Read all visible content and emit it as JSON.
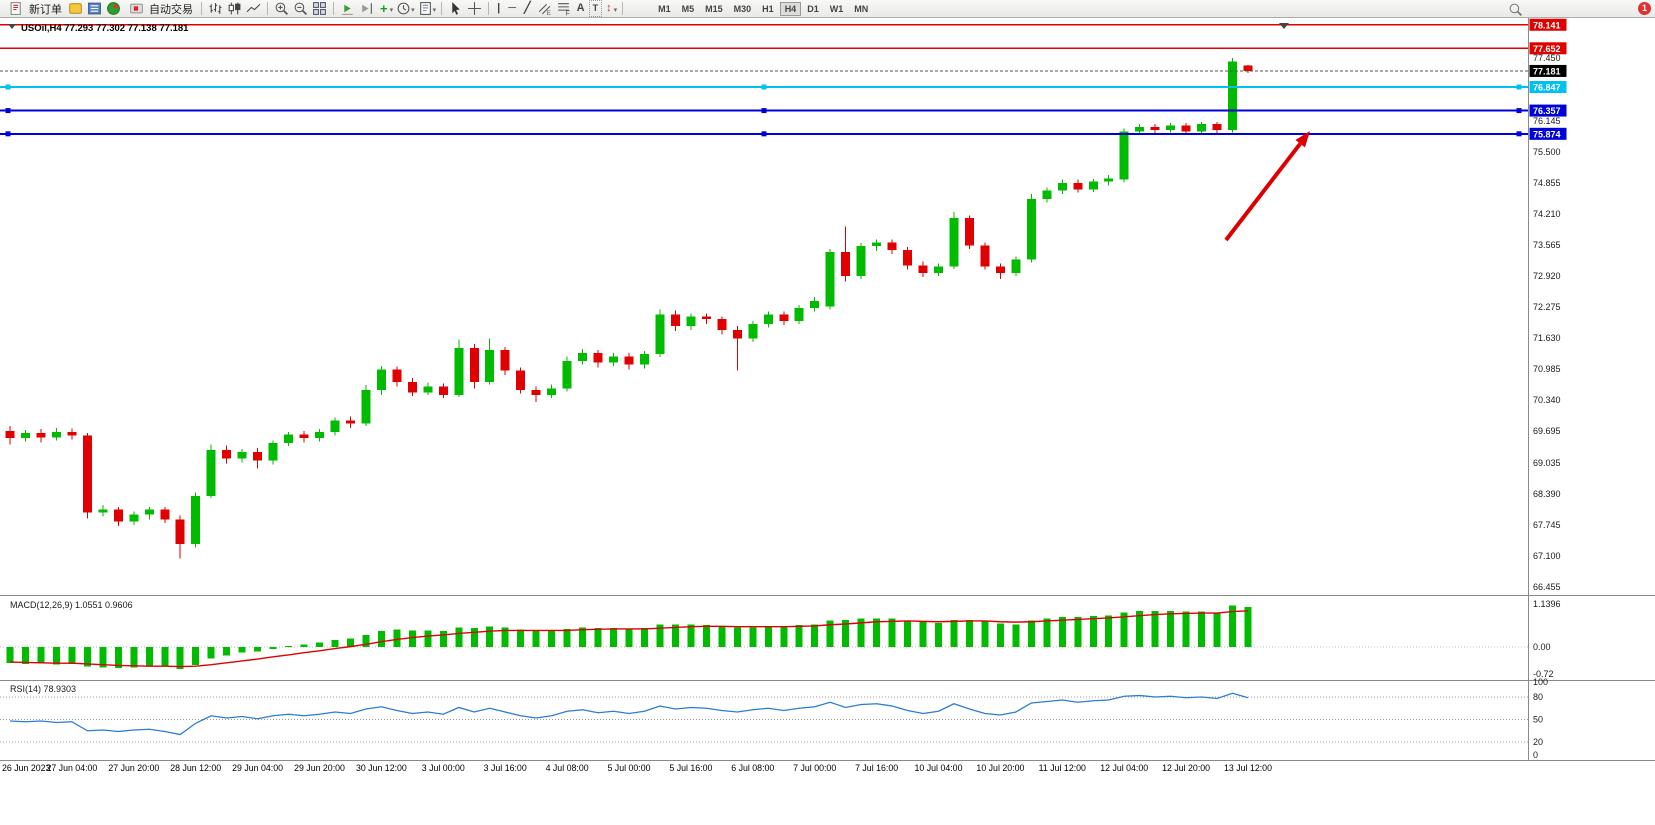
{
  "toolbar": {
    "new_order_label": "新订单",
    "auto_trading_label": "自动交易",
    "timeframes": [
      "M1",
      "M5",
      "M15",
      "M30",
      "H1",
      "H4",
      "D1",
      "W1",
      "MN"
    ],
    "active_timeframe": "H4",
    "notification_count": "1"
  },
  "icons": {
    "caret": "▾",
    "vline_tool": "|",
    "hline_tool": "─",
    "trendline_tool": "╱",
    "text_tool": "A",
    "label_tool": "T",
    "arrows_tool": "↕",
    "add_indicator": "+"
  },
  "chart": {
    "title": {
      "symbol": "USOil,H4",
      "open": "77.293",
      "high": "77.302",
      "low": "77.138",
      "close": "77.181"
    }
  },
  "macd": {
    "name": "MACD(12,26,9)",
    "main_value": "1.0551",
    "signal_value": "0.9606"
  },
  "rsi": {
    "name": "RSI(14)",
    "value": "78.9303"
  },
  "chart_data": {
    "type": "candlestick",
    "symbol": "USOil",
    "period": "H4",
    "colors": {
      "up": "#00bb00",
      "down": "#e00000",
      "macd_hist": "#00bb00",
      "macd_signal": "#e00000",
      "rsi_line": "#2b7cd3"
    },
    "price_axis_labels": [
      "77.450",
      "76.145",
      "75.500",
      "74.855",
      "74.210",
      "73.565",
      "72.920",
      "72.275",
      "71.630",
      "70.985",
      "70.340",
      "69.695",
      "69.035",
      "68.390",
      "67.745",
      "67.100",
      "66.455"
    ],
    "time_labels": [
      "26 Jun 2023",
      "27 Jun 04:00",
      "27 Jun 20:00",
      "28 Jun 12:00",
      "29 Jun 04:00",
      "29 Jun 20:00",
      "30 Jun 12:00",
      "3 Jul 00:00",
      "3 Jul 16:00",
      "4 Jul 08:00",
      "5 Jul 00:00",
      "5 Jul 16:00",
      "6 Jul 08:00",
      "7 Jul 00:00",
      "7 Jul 16:00",
      "10 Jul 04:00",
      "10 Jul 20:00",
      "11 Jul 12:00",
      "12 Jul 04:00",
      "12 Jul 20:00",
      "13 Jul 12:00"
    ],
    "label_every_n_candles": 4,
    "candles": [
      [
        69.7,
        69.8,
        69.42,
        69.55
      ],
      [
        69.55,
        69.72,
        69.48,
        69.65
      ],
      [
        69.65,
        69.74,
        69.46,
        69.56
      ],
      [
        69.56,
        69.76,
        69.5,
        69.68
      ],
      [
        69.68,
        69.75,
        69.52,
        69.6
      ],
      [
        69.6,
        69.66,
        67.88,
        68.0
      ],
      [
        68.0,
        68.16,
        67.92,
        68.06
      ],
      [
        68.06,
        68.12,
        67.72,
        67.82
      ],
      [
        67.82,
        68.02,
        67.74,
        67.96
      ],
      [
        67.96,
        68.12,
        67.86,
        68.06
      ],
      [
        68.06,
        68.12,
        67.78,
        67.86
      ],
      [
        67.86,
        67.94,
        67.05,
        67.35
      ],
      [
        67.35,
        68.42,
        67.28,
        68.35
      ],
      [
        68.35,
        69.42,
        68.3,
        69.3
      ],
      [
        69.3,
        69.4,
        69.02,
        69.12
      ],
      [
        69.12,
        69.32,
        69.04,
        69.26
      ],
      [
        69.26,
        69.34,
        68.92,
        69.08
      ],
      [
        69.08,
        69.5,
        69.0,
        69.45
      ],
      [
        69.45,
        69.68,
        69.38,
        69.62
      ],
      [
        69.62,
        69.7,
        69.46,
        69.55
      ],
      [
        69.55,
        69.74,
        69.48,
        69.68
      ],
      [
        69.68,
        69.98,
        69.6,
        69.92
      ],
      [
        69.92,
        70.0,
        69.76,
        69.85
      ],
      [
        69.85,
        70.65,
        69.8,
        70.55
      ],
      [
        70.55,
        71.05,
        70.45,
        70.98
      ],
      [
        70.98,
        71.04,
        70.62,
        70.72
      ],
      [
        70.72,
        70.8,
        70.42,
        70.5
      ],
      [
        70.5,
        70.7,
        70.44,
        70.62
      ],
      [
        70.62,
        70.68,
        70.38,
        70.45
      ],
      [
        70.45,
        71.6,
        70.4,
        71.42
      ],
      [
        71.42,
        71.5,
        70.58,
        70.72
      ],
      [
        70.72,
        71.62,
        70.66,
        71.38
      ],
      [
        71.38,
        71.44,
        70.86,
        70.95
      ],
      [
        70.95,
        71.02,
        70.48,
        70.55
      ],
      [
        70.55,
        70.62,
        70.3,
        70.45
      ],
      [
        70.45,
        70.66,
        70.38,
        70.58
      ],
      [
        70.58,
        71.25,
        70.52,
        71.15
      ],
      [
        71.15,
        71.4,
        71.08,
        71.32
      ],
      [
        71.32,
        71.38,
        71.02,
        71.12
      ],
      [
        71.12,
        71.32,
        71.05,
        71.25
      ],
      [
        71.25,
        71.32,
        70.98,
        71.08
      ],
      [
        71.08,
        71.36,
        71.0,
        71.3
      ],
      [
        71.3,
        72.22,
        71.24,
        72.12
      ],
      [
        72.12,
        72.2,
        71.78,
        71.88
      ],
      [
        71.88,
        72.14,
        71.8,
        72.08
      ],
      [
        72.08,
        72.14,
        71.92,
        72.02
      ],
      [
        72.02,
        72.08,
        71.7,
        71.8
      ],
      [
        71.8,
        71.88,
        70.95,
        71.62
      ],
      [
        71.62,
        71.98,
        71.55,
        71.92
      ],
      [
        71.92,
        72.18,
        71.85,
        72.12
      ],
      [
        72.12,
        72.18,
        71.9,
        71.98
      ],
      [
        71.98,
        72.32,
        71.92,
        72.25
      ],
      [
        72.25,
        72.48,
        72.18,
        72.4
      ],
      [
        72.28,
        73.48,
        72.22,
        73.42
      ],
      [
        73.42,
        73.95,
        72.8,
        72.92
      ],
      [
        72.92,
        73.6,
        72.86,
        73.54
      ],
      [
        73.54,
        73.68,
        73.44,
        73.62
      ],
      [
        73.62,
        73.68,
        73.38,
        73.46
      ],
      [
        73.46,
        73.52,
        73.05,
        73.14
      ],
      [
        73.14,
        73.22,
        72.9,
        72.98
      ],
      [
        72.98,
        73.18,
        72.92,
        73.12
      ],
      [
        73.12,
        74.25,
        73.06,
        74.12
      ],
      [
        74.12,
        74.18,
        73.48,
        73.55
      ],
      [
        73.55,
        73.62,
        73.05,
        73.12
      ],
      [
        73.12,
        73.18,
        72.86,
        72.98
      ],
      [
        72.98,
        73.32,
        72.92,
        73.26
      ],
      [
        73.26,
        74.62,
        73.2,
        74.52
      ],
      [
        74.52,
        74.76,
        74.45,
        74.7
      ],
      [
        74.7,
        74.92,
        74.62,
        74.85
      ],
      [
        74.85,
        74.92,
        74.65,
        74.72
      ],
      [
        74.72,
        74.94,
        74.66,
        74.88
      ],
      [
        74.88,
        75.02,
        74.8,
        74.95
      ],
      [
        74.92,
        75.98,
        74.86,
        75.92
      ],
      [
        75.92,
        76.08,
        75.86,
        76.02
      ],
      [
        76.02,
        76.08,
        75.88,
        75.95
      ],
      [
        75.95,
        76.1,
        75.9,
        76.05
      ],
      [
        76.05,
        76.1,
        75.86,
        75.92
      ],
      [
        75.92,
        76.12,
        75.88,
        76.08
      ],
      [
        76.08,
        76.12,
        75.85,
        75.95
      ],
      [
        75.95,
        77.45,
        75.9,
        77.38
      ],
      [
        77.293,
        77.302,
        77.138,
        77.181
      ]
    ],
    "hlines": [
      {
        "price": 78.141,
        "label": "78.141",
        "color": "#e00000",
        "width": 1.3,
        "handles": false
      },
      {
        "price": 77.652,
        "label": "77.652",
        "color": "#e00000",
        "width": 1.3,
        "handles": false
      },
      {
        "price": 76.847,
        "label": "76.847",
        "color": "#00c0f0",
        "width": 2,
        "handles": true
      },
      {
        "price": 76.357,
        "label": "76.357",
        "color": "#0000d8",
        "width": 2,
        "handles": true
      },
      {
        "price": 75.874,
        "label": "75.874",
        "color": "#0000d8",
        "width": 2,
        "handles": true
      }
    ],
    "current_price": {
      "value": 77.181,
      "label": "77.181",
      "color": "#000000"
    },
    "macd": {
      "hist": [
        -0.42,
        -0.45,
        -0.44,
        -0.46,
        -0.45,
        -0.52,
        -0.55,
        -0.56,
        -0.55,
        -0.52,
        -0.5,
        -0.58,
        -0.48,
        -0.3,
        -0.22,
        -0.15,
        -0.12,
        -0.05,
        0.02,
        0.06,
        0.12,
        0.18,
        0.22,
        0.32,
        0.42,
        0.46,
        0.44,
        0.44,
        0.42,
        0.52,
        0.5,
        0.55,
        0.52,
        0.46,
        0.42,
        0.42,
        0.48,
        0.52,
        0.5,
        0.5,
        0.48,
        0.5,
        0.6,
        0.6,
        0.6,
        0.58,
        0.55,
        0.52,
        0.52,
        0.55,
        0.55,
        0.58,
        0.6,
        0.7,
        0.72,
        0.75,
        0.76,
        0.75,
        0.7,
        0.66,
        0.64,
        0.72,
        0.72,
        0.68,
        0.62,
        0.6,
        0.7,
        0.76,
        0.8,
        0.8,
        0.82,
        0.84,
        0.92,
        0.96,
        0.96,
        0.96,
        0.94,
        0.94,
        0.92,
        1.1,
        1.0551
      ],
      "signal": [
        -0.4,
        -0.41,
        -0.42,
        -0.43,
        -0.43,
        -0.45,
        -0.47,
        -0.49,
        -0.5,
        -0.51,
        -0.51,
        -0.52,
        -0.51,
        -0.47,
        -0.42,
        -0.37,
        -0.32,
        -0.26,
        -0.21,
        -0.15,
        -0.1,
        -0.04,
        0.01,
        0.07,
        0.14,
        0.2,
        0.25,
        0.29,
        0.32,
        0.36,
        0.39,
        0.42,
        0.44,
        0.44,
        0.44,
        0.44,
        0.44,
        0.46,
        0.47,
        0.48,
        0.48,
        0.48,
        0.5,
        0.52,
        0.54,
        0.55,
        0.55,
        0.54,
        0.54,
        0.54,
        0.54,
        0.55,
        0.56,
        0.59,
        0.61,
        0.64,
        0.67,
        0.68,
        0.69,
        0.68,
        0.67,
        0.68,
        0.69,
        0.69,
        0.67,
        0.66,
        0.67,
        0.69,
        0.71,
        0.73,
        0.75,
        0.77,
        0.8,
        0.83,
        0.86,
        0.88,
        0.89,
        0.9,
        0.9,
        0.94,
        0.9606
      ],
      "axis_labels": [
        "1.1396",
        "0.00",
        "-0.72"
      ]
    },
    "rsi": {
      "values": [
        48,
        47,
        48,
        46,
        47,
        35,
        36,
        34,
        36,
        37,
        34,
        30,
        45,
        55,
        52,
        54,
        51,
        55,
        57,
        55,
        57,
        60,
        58,
        64,
        67,
        62,
        58,
        60,
        57,
        66,
        60,
        65,
        60,
        55,
        52,
        55,
        61,
        63,
        59,
        61,
        58,
        61,
        68,
        64,
        66,
        65,
        62,
        60,
        63,
        65,
        62,
        65,
        67,
        73,
        66,
        70,
        71,
        68,
        62,
        58,
        61,
        71,
        64,
        58,
        56,
        60,
        72,
        74,
        76,
        73,
        75,
        76,
        81,
        82,
        80,
        81,
        79,
        80,
        78,
        85,
        78.93
      ],
      "levels": [
        80,
        50,
        20
      ],
      "axis_labels": [
        "100",
        "80",
        "50",
        "20",
        "0"
      ]
    },
    "annotations": [
      {
        "type": "arrow",
        "from": [
          1226,
          240
        ],
        "to": [
          1310,
          131
        ],
        "color": "#dd0000",
        "width": 4
      }
    ]
  }
}
